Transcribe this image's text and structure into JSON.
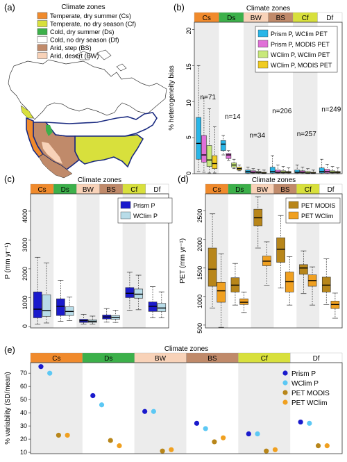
{
  "panel_labels": [
    "(a)",
    "(b)",
    "(c)",
    "(d)",
    "(e)"
  ],
  "zone_header_title": "Climate zones",
  "zone_codes": [
    "Cs",
    "Ds",
    "BW",
    "BS",
    "Cf",
    "Df"
  ],
  "zone_colors": [
    "#f08a2c",
    "#3cb04a",
    "#f8d2b8",
    "#c08a6a",
    "#d8e03c",
    "#ffffff"
  ],
  "map_legend": {
    "title": "Climate zones",
    "items": [
      {
        "label": "Temperate, dry summer (Cs)",
        "color": "#f08a2c"
      },
      {
        "label": "Temperate, no dry season (Cf)",
        "color": "#d8e03c"
      },
      {
        "label": "Cold, dry summer (Ds)",
        "color": "#3cb04a"
      },
      {
        "label": "Cold, no dry season (Df)",
        "color": "#ffffff"
      },
      {
        "label": "Arid, step (BS)",
        "color": "#c08a6a"
      },
      {
        "label": "Arid, desert (BW)",
        "color": "#f8d2b8"
      }
    ]
  },
  "chart_data": [
    {
      "panel": "b",
      "type": "box",
      "title": "Climate zones",
      "ylabel": "% heterogeneity bias",
      "ylim": [
        0,
        21
      ],
      "yticks": [
        0,
        5,
        10,
        15,
        20
      ],
      "categories": [
        "Cs",
        "Ds",
        "BW",
        "BS",
        "Cf",
        "Df"
      ],
      "counts": [
        "n=71",
        "n=14",
        "n=34",
        "n=206",
        "n=257",
        "n=249"
      ],
      "legend": "top-right",
      "series": [
        {
          "name": "Prism P, WClim PET",
          "color": "#29b6e8",
          "boxes": [
            [
              0.3,
              2.0,
              4.2,
              7.8,
              15.0
            ],
            [
              2.6,
              3.2,
              4.1,
              4.6,
              5.3
            ],
            [
              0.0,
              0.1,
              0.3,
              0.5,
              0.9
            ],
            [
              0.0,
              0.1,
              0.3,
              0.9,
              2.5
            ],
            [
              0.0,
              0.1,
              0.2,
              0.5,
              1.2
            ],
            [
              0.0,
              0.1,
              0.3,
              0.8,
              2.0
            ]
          ]
        },
        {
          "name": "Prism P, MODIS PET",
          "color": "#e070d8",
          "boxes": [
            [
              0.2,
              1.6,
              2.6,
              5.3,
              10.5
            ],
            [
              1.8,
              2.1,
              2.6,
              2.8,
              3.2
            ],
            [
              0.0,
              0.1,
              0.2,
              0.4,
              0.7
            ],
            [
              0.0,
              0.1,
              0.2,
              0.5,
              1.2
            ],
            [
              0.0,
              0.1,
              0.2,
              0.4,
              0.9
            ],
            [
              0.0,
              0.1,
              0.3,
              0.6,
              1.3
            ]
          ]
        },
        {
          "name": "WClim P, WClim PET",
          "color": "#c8e87a",
          "boxes": [
            [
              0.1,
              1.0,
              1.9,
              3.9,
              9.0
            ],
            [
              0.7,
              0.9,
              1.2,
              1.5,
              2.0
            ],
            [
              0.0,
              0.1,
              0.2,
              0.3,
              0.6
            ],
            [
              0.0,
              0.1,
              0.2,
              0.4,
              1.0
            ],
            [
              0.0,
              0.1,
              0.1,
              0.3,
              0.7
            ],
            [
              0.0,
              0.1,
              0.2,
              0.4,
              1.0
            ]
          ]
        },
        {
          "name": "WClim P, MODIS PET",
          "color": "#f0cc22",
          "boxes": [
            [
              0.1,
              0.7,
              1.4,
              2.5,
              6.5
            ],
            [
              0.4,
              0.5,
              0.7,
              0.9,
              1.2
            ],
            [
              0.0,
              0.1,
              0.1,
              0.2,
              0.5
            ],
            [
              0.0,
              0.1,
              0.2,
              0.3,
              0.8
            ],
            [
              0.0,
              0.1,
              0.1,
              0.2,
              0.5
            ],
            [
              0.0,
              0.1,
              0.2,
              0.3,
              0.8
            ]
          ]
        }
      ]
    },
    {
      "panel": "c",
      "type": "box",
      "title": "Climate zones",
      "ylabel": "P (mm yr⁻¹)",
      "ylim": [
        -50,
        4600
      ],
      "yticks": [
        0,
        1000,
        2000,
        3000,
        4000
      ],
      "categories": [
        "Cs",
        "Ds",
        "BW",
        "BS",
        "Cf",
        "Df"
      ],
      "legend": "top-right",
      "series": [
        {
          "name": "Prism P",
          "color": "#1a1acc",
          "boxes": [
            [
              80,
              300,
              600,
              1200,
              2400
            ],
            [
              180,
              380,
              700,
              960,
              1600
            ],
            [
              80,
              140,
              200,
              250,
              420
            ],
            [
              150,
              260,
              330,
              400,
              620
            ],
            [
              560,
              1000,
              1150,
              1350,
              1880
            ],
            [
              300,
              520,
              700,
              850,
              1380
            ]
          ]
        },
        {
          "name": "WClim P",
          "color": "#b8dce8",
          "boxes": [
            [
              120,
              350,
              550,
              1100,
              2200
            ],
            [
              200,
              380,
              520,
              680,
              1020
            ],
            [
              80,
              140,
              180,
              230,
              360
            ],
            [
              140,
              250,
              310,
              380,
              560
            ],
            [
              580,
              980,
              1120,
              1300,
              1780
            ],
            [
              300,
              520,
              640,
              800,
              1200
            ]
          ]
        }
      ]
    },
    {
      "panel": "d",
      "type": "box",
      "title": "Climate zones",
      "ylabel": "PET (mm yr⁻¹)",
      "ylim": [
        450,
        2800
      ],
      "yticks": [
        500,
        1000,
        1500,
        2000,
        2500
      ],
      "categories": [
        "Cs",
        "Ds",
        "BW",
        "BS",
        "Cf",
        "Df"
      ],
      "legend": "top-right",
      "series": [
        {
          "name": "PET MODIS",
          "color": "#b8861a",
          "boxes": [
            [
              800,
              1180,
              1480,
              1850,
              2450
            ],
            [
              850,
              1080,
              1200,
              1330,
              1580
            ],
            [
              1850,
              2240,
              2380,
              2530,
              2750
            ],
            [
              1150,
              1600,
              1830,
              2030,
              2420
            ],
            [
              1050,
              1390,
              1500,
              1560,
              1800
            ],
            [
              860,
              1080,
              1200,
              1340,
              1660
            ]
          ]
        },
        {
          "name": "PET WClim",
          "color": "#f0a020",
          "boxes": [
            [
              460,
              900,
              1100,
              1250,
              1750
            ],
            [
              720,
              860,
              900,
              960,
              1080
            ],
            [
              1200,
              1540,
              1620,
              1710,
              1960
            ],
            [
              850,
              1080,
              1260,
              1430,
              1700
            ],
            [
              850,
              1180,
              1280,
              1380,
              1520
            ],
            [
              620,
              790,
              860,
              920,
              1060
            ]
          ]
        }
      ]
    },
    {
      "panel": "e",
      "type": "scatter",
      "title": "Climate zones",
      "ylabel": "% variability (SD/mean)",
      "ylim": [
        9,
        78
      ],
      "yticks": [
        10,
        20,
        30,
        40,
        50,
        60,
        70
      ],
      "categories": [
        "Cs",
        "Ds",
        "BW",
        "BS",
        "Cf",
        "Df"
      ],
      "legend": "top-right",
      "series": [
        {
          "name": "Prism P",
          "color": "#1a1acc",
          "values": [
            75,
            53,
            41,
            32,
            24,
            33
          ]
        },
        {
          "name": "WClim P",
          "color": "#5cc8f4",
          "values": [
            70,
            46,
            41,
            28,
            24,
            32
          ]
        },
        {
          "name": "PET MODIS",
          "color": "#b8861a",
          "values": [
            23,
            19,
            11,
            18,
            11,
            15
          ]
        },
        {
          "name": "PET WClim",
          "color": "#f0a020",
          "values": [
            23,
            15,
            12,
            21,
            12,
            15
          ]
        }
      ]
    }
  ]
}
